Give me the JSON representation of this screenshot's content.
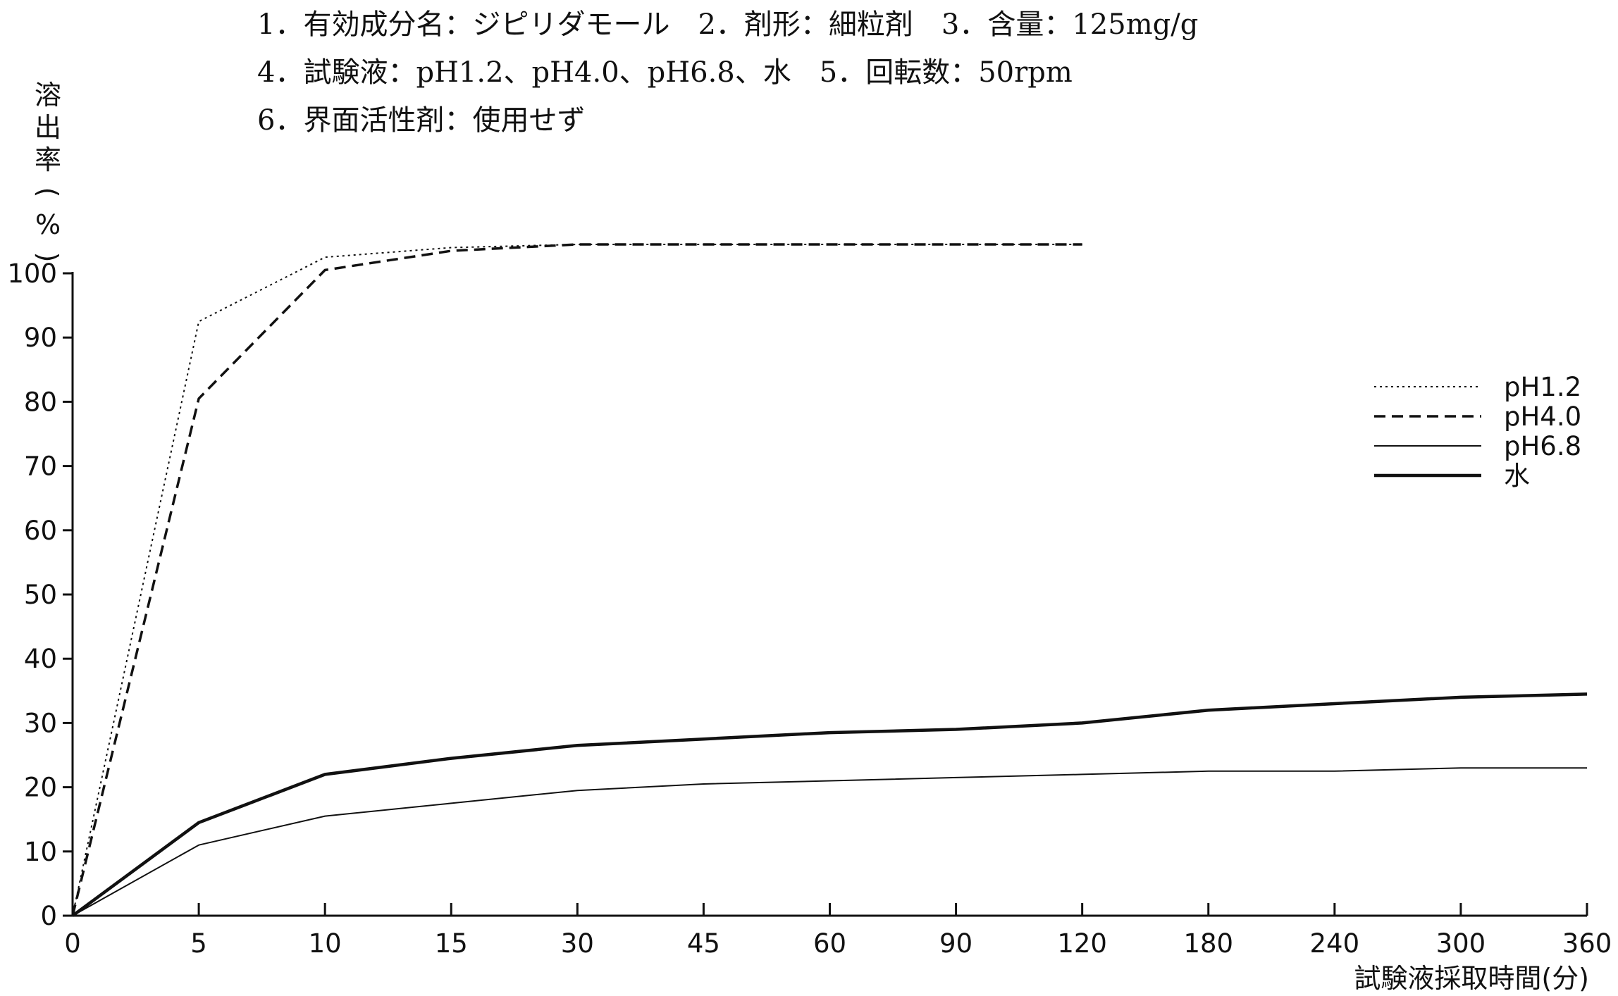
{
  "header": {
    "line1": "1．有効成分名：ジピリダモール　2．剤形：細粒剤　3．含量：125mg/g",
    "line2": "4．試験液：pH1.2、pH4.0、pH6.8、水　5．回転数：50rpm",
    "line3": "6．界面活性剤：使用せず"
  },
  "chart_data": {
    "type": "line",
    "title": "",
    "ylabel": "溶出率(%)",
    "xlabel": "試験液採取時間(分)",
    "categories": [
      "0",
      "5",
      "10",
      "15",
      "30",
      "45",
      "60",
      "90",
      "120",
      "180",
      "240",
      "300",
      "360"
    ],
    "y_ticks": [
      "0",
      "10",
      "20",
      "30",
      "40",
      "50",
      "60",
      "70",
      "80",
      "90",
      "100"
    ],
    "ylim": [
      0,
      100
    ],
    "x_scale": "categorical, equally spaced sampling times",
    "grid": false,
    "legend_position": "right",
    "series": [
      {
        "name": "pH1.2",
        "style": "dotted",
        "color": "#111111",
        "values": [
          0,
          92.5,
          102.5,
          104,
          104.5,
          104.5,
          104.5,
          104.5,
          104.5,
          null,
          null,
          null,
          null
        ]
      },
      {
        "name": "pH4.0",
        "style": "dashed",
        "color": "#111111",
        "values": [
          0,
          80.5,
          100.5,
          103.5,
          104.5,
          104.5,
          104.5,
          104.5,
          104.5,
          null,
          null,
          null,
          null
        ]
      },
      {
        "name": "pH6.8",
        "style": "thin",
        "color": "#111111",
        "values": [
          0,
          11,
          15.5,
          17.5,
          19.5,
          20.5,
          21,
          21.5,
          22,
          22.5,
          22.5,
          23,
          23
        ]
      },
      {
        "name": "水",
        "style": "thick",
        "color": "#111111",
        "values": [
          0,
          14.5,
          22,
          24.5,
          26.5,
          27.5,
          28.5,
          29,
          30,
          32,
          33,
          34,
          34.5
        ]
      }
    ]
  }
}
